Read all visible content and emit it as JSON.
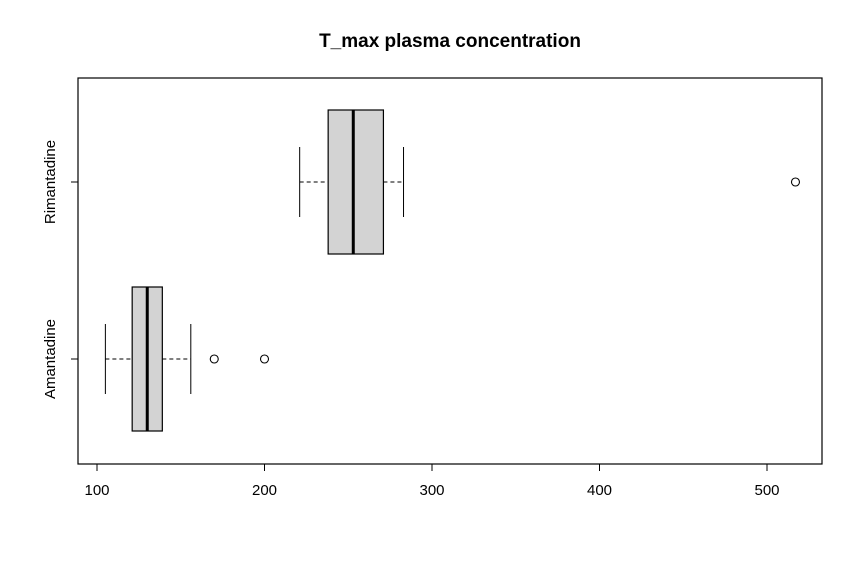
{
  "chart_data": {
    "type": "boxplot",
    "orientation": "horizontal",
    "title": "T_max plasma concentration",
    "xlabel": "",
    "ylabel": "",
    "xlim": [
      88,
      532
    ],
    "x_ticks": [
      100,
      200,
      300,
      400,
      500
    ],
    "grid": false,
    "legend": "none",
    "colors": {
      "box_fill": "#d3d3d3",
      "stroke": "#000000"
    },
    "categories": [
      "Amantadine",
      "Rimantadine"
    ],
    "series": [
      {
        "category": "Amantadine",
        "whisker_low": 105,
        "q1": 121,
        "median": 130,
        "q3": 139,
        "whisker_high": 156,
        "outliers": [
          170,
          200
        ]
      },
      {
        "category": "Rimantadine",
        "whisker_low": 221,
        "q1": 238,
        "median": 253,
        "q3": 271,
        "whisker_high": 283,
        "outliers": [
          517
        ]
      }
    ]
  }
}
